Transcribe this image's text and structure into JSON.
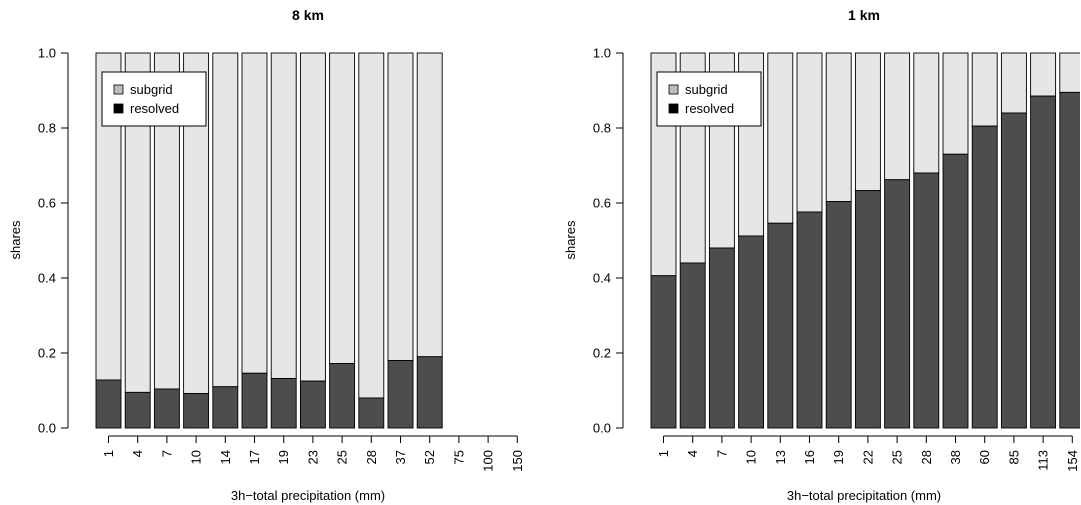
{
  "chart_data": [
    {
      "type": "bar",
      "stacked": true,
      "title": "8 km",
      "xlabel": "3h−total precipitation (mm)",
      "ylabel": "shares",
      "ylim": [
        0,
        1
      ],
      "yticks": [
        "0.0",
        "0.2",
        "0.4",
        "0.6",
        "0.8",
        "1.0"
      ],
      "categories": [
        "1",
        "4",
        "7",
        "10",
        "14",
        "17",
        "19",
        "23",
        "25",
        "28",
        "37",
        "52",
        "75",
        "100",
        "150"
      ],
      "series": [
        {
          "name": "resolved",
          "color": "#4d4d4d",
          "values": [
            0.128,
            0.095,
            0.104,
            0.092,
            0.11,
            0.146,
            0.132,
            0.125,
            0.172,
            0.08,
            0.18,
            0.19,
            null,
            null,
            null
          ]
        },
        {
          "name": "subgrid",
          "color": "#e6e6e6",
          "values": [
            0.872,
            0.905,
            0.896,
            0.908,
            0.89,
            0.854,
            0.868,
            0.875,
            0.828,
            0.92,
            0.82,
            0.81,
            null,
            null,
            null
          ]
        }
      ],
      "legend": {
        "position": "top-left",
        "items": [
          {
            "label": "subgrid",
            "color": "#bebebe"
          },
          {
            "label": "resolved",
            "color": "#000000"
          }
        ]
      }
    },
    {
      "type": "bar",
      "stacked": true,
      "title": "1 km",
      "xlabel": "3h−total precipitation (mm)",
      "ylabel": "shares",
      "ylim": [
        0,
        1
      ],
      "yticks": [
        "0.0",
        "0.2",
        "0.4",
        "0.6",
        "0.8",
        "1.0"
      ],
      "categories": [
        "1",
        "4",
        "7",
        "10",
        "13",
        "16",
        "19",
        "22",
        "25",
        "28",
        "38",
        "60",
        "85",
        "113",
        "154"
      ],
      "series": [
        {
          "name": "resolved",
          "color": "#4d4d4d",
          "values": [
            0.406,
            0.44,
            0.48,
            0.512,
            0.546,
            0.576,
            0.604,
            0.633,
            0.662,
            0.68,
            0.73,
            0.805,
            0.84,
            0.885,
            0.895
          ]
        },
        {
          "name": "subgrid",
          "color": "#e6e6e6",
          "values": [
            0.594,
            0.56,
            0.52,
            0.488,
            0.454,
            0.424,
            0.396,
            0.367,
            0.338,
            0.32,
            0.27,
            0.195,
            0.16,
            0.115,
            0.105
          ]
        }
      ],
      "legend": {
        "position": "top-left",
        "items": [
          {
            "label": "subgrid",
            "color": "#bebebe"
          },
          {
            "label": "resolved",
            "color": "#000000"
          }
        ]
      }
    }
  ]
}
